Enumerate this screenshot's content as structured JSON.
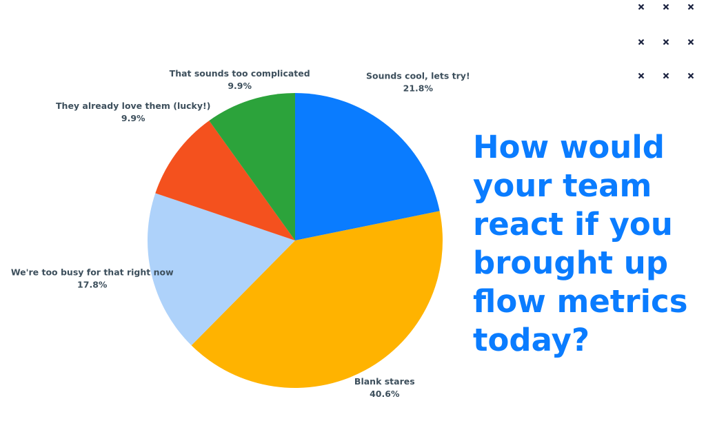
{
  "chart_data": {
    "type": "pie",
    "title": "How would your team react if you brought up flow metrics today?",
    "categories": [
      "Sounds cool, lets try!",
      "Blank stares",
      "We're too busy for that right now",
      "They already love them (lucky!)",
      "That sounds too complicated"
    ],
    "values": [
      21.8,
      40.6,
      17.8,
      9.9,
      9.9
    ],
    "value_labels": [
      "21.8%",
      "40.6%",
      "17.8%",
      "9.9%",
      "9.9%"
    ],
    "colors": [
      "#0a7cff",
      "#ffb300",
      "#aed2fa",
      "#f4511e",
      "#2ca33b"
    ]
  }
}
